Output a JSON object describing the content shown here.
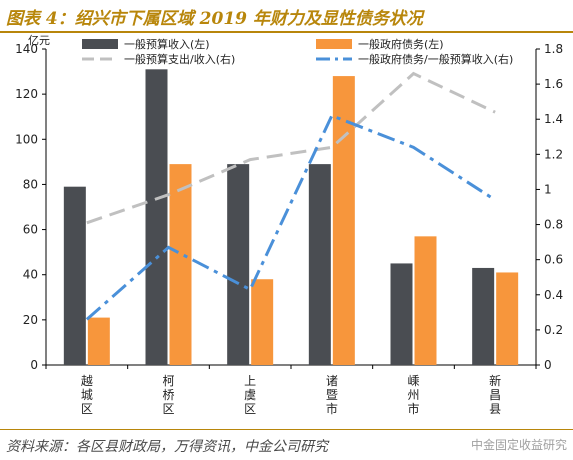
{
  "header": {
    "title": "图表 4：绍兴市下属区域 2019 年财力及显性债务状况"
  },
  "footer": {
    "source": "资料来源：各区县财政局，万得资讯，中金公司研究",
    "watermark": "中金固定收益研究"
  },
  "chart_data": {
    "type": "bar",
    "title": "",
    "ylabel": "亿元",
    "categories": [
      "越城区",
      "柯桥区",
      "上虞区",
      "诸暨市",
      "嵊州市",
      "新昌县"
    ],
    "category_lines": [
      [
        "越",
        "城",
        "区"
      ],
      [
        "柯",
        "桥",
        "区"
      ],
      [
        "上",
        "虞",
        "区"
      ],
      [
        "诸",
        "暨",
        "市"
      ],
      [
        "嵊",
        "州",
        "市"
      ],
      [
        "新",
        "昌",
        "县"
      ]
    ],
    "left_axis": {
      "min": 0,
      "max": 140,
      "ticks": [
        0,
        20,
        40,
        60,
        80,
        100,
        120,
        140
      ]
    },
    "right_axis": {
      "min": 0,
      "max": 1.8,
      "ticks": [
        "0",
        "0.2",
        "0.4",
        "0.6",
        "0.8",
        "1",
        "1.2",
        "1.4",
        "1.6",
        "1.8"
      ]
    },
    "series": [
      {
        "name": "一般预算收入(左)",
        "type": "bar",
        "axis": "left",
        "color": "#4a4d52",
        "values": [
          79,
          131,
          89,
          89,
          45,
          43
        ]
      },
      {
        "name": "一般政府债务(左)",
        "type": "bar",
        "axis": "left",
        "color": "#f7963c",
        "values": [
          21,
          89,
          38,
          128,
          57,
          41
        ]
      },
      {
        "name": "一般预算支出/收入(右)",
        "type": "line",
        "axis": "right",
        "color": "#c0c0c0",
        "dash": "long",
        "values": [
          0.81,
          0.97,
          1.17,
          1.24,
          1.66,
          1.44
        ]
      },
      {
        "name": "一般政府债务/一般预算收入(右)",
        "type": "line",
        "axis": "right",
        "color": "#4a90d9",
        "dash": "dashdot",
        "values": [
          0.26,
          0.67,
          0.43,
          1.42,
          1.24,
          0.94
        ]
      }
    ],
    "legend": {
      "position": "top",
      "columns": 2
    },
    "grid": false
  }
}
